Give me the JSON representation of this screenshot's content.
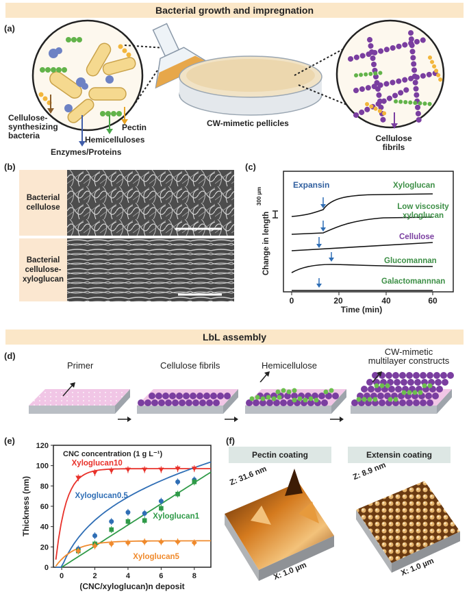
{
  "banner_top": "Bacterial growth and impregnation",
  "banner_mid": "LbL assembly",
  "panels": {
    "a": "(a)",
    "b": "(b)",
    "c": "(c)",
    "d": "(d)",
    "e": "(e)",
    "f": "(f)"
  },
  "panel_a": {
    "bacteria": "Cellulose-\nsynthesizing\nbacteria",
    "enzymes": "Enzymes/Proteins",
    "hemicelluloses": "Hemicelluloses",
    "pectin": "Pectin",
    "pellicles": "CW-mimetic pellicles",
    "fibrils": "Cellulose\nfibrils"
  },
  "panel_b": {
    "top": "Bacterial\ncellulose",
    "bottom": "Bacterial\ncellulose-\nxyloglucan"
  },
  "panel_c": {
    "expansin": "Expansin",
    "scale": "300 µm",
    "ylabel": "Change in length",
    "xlabel": "Time (min)",
    "ticks": [
      "0",
      "20",
      "40",
      "60"
    ],
    "curves": [
      "Xyloglucan",
      "Low viscosity\nxyloglucan",
      "Cellulose",
      "Glucomannan",
      "Galactomannnan"
    ]
  },
  "panel_d": {
    "primer": "Primer",
    "fibrils": "Cellulose fibrils",
    "hemicellulose": "Hemicellulose",
    "constructs": "CW-mimetic\nmultilayer constructs"
  },
  "chart_data": {
    "type": "scatter",
    "title": "CNC concentration (1 g L⁻¹)",
    "xlabel": "(CNC/xyloglucan)n deposit",
    "ylabel": "Thickness (nm)",
    "xlim": [
      -0.5,
      9
    ],
    "ylim": [
      0,
      120
    ],
    "xticks": [
      0,
      2,
      4,
      6,
      8
    ],
    "yticks": [
      0,
      20,
      40,
      60,
      80,
      100,
      120
    ],
    "series": [
      {
        "name": "Xyloglucan10",
        "color": "#e8312a",
        "marker": "triangle-down",
        "x": [
          1,
          2,
          3,
          4,
          5,
          6,
          7,
          8
        ],
        "y": [
          88,
          93,
          95,
          96,
          96,
          96,
          97,
          97
        ]
      },
      {
        "name": "Xyloglucan0.5",
        "color": "#2f6eb5",
        "marker": "circle",
        "x": [
          1,
          2,
          3,
          4,
          5,
          6,
          7,
          8
        ],
        "y": [
          18,
          31,
          45,
          54,
          53,
          65,
          84,
          86
        ]
      },
      {
        "name": "Xyloglucan1",
        "color": "#2f9a48",
        "marker": "square",
        "x": [
          1,
          2,
          3,
          4,
          5,
          6,
          7,
          8
        ],
        "y": [
          16,
          23,
          37,
          45,
          46,
          58,
          72,
          84
        ]
      },
      {
        "name": "Xyloglucan5",
        "color": "#f08a2c",
        "marker": "diamond",
        "x": [
          1,
          2,
          3,
          4,
          5,
          6,
          7,
          8
        ],
        "y": [
          16,
          21,
          23,
          24,
          25,
          25,
          25,
          24
        ]
      }
    ]
  },
  "panel_f": {
    "pectin": "Pectin coating",
    "extensin": "Extensin coating",
    "pectin_z": "Z: 31.6 nm",
    "pectin_x": "X: 1.0 µm",
    "extensin_z": "Z: 8.9 nm",
    "extensin_x": "X: 1.0 µm"
  }
}
